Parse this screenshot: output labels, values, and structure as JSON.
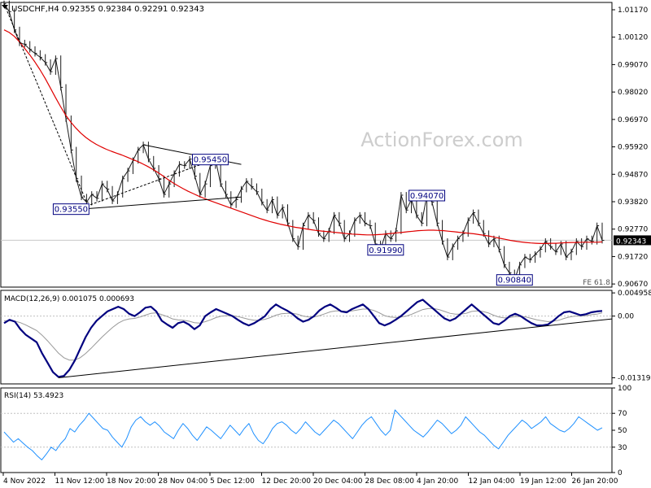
{
  "header": {
    "symbol": "USDCHF,H4",
    "ohlc": "0.92355 0.92384 0.92291 0.92343",
    "collapse_icon": "triangle-down-icon"
  },
  "watermark": "ActionForex.com",
  "colors": {
    "price_line": "#1a1a1a",
    "ma_line": "#e00000",
    "macd_line": "#00007f",
    "signal_line": "#999999",
    "rsi_line": "#1e90ff",
    "trendline": "#000000",
    "label_border": "#00007f",
    "label_text": "#00007f",
    "current_price_bg": "#000000",
    "current_price_text": "#ffffff",
    "watermark": "#cccccc",
    "grid": "#c0c0c0"
  },
  "chart_data": [
    {
      "type": "line",
      "panel": "price",
      "y_ticks": [
        "1.01170",
        "1.00120",
        "0.99070",
        "0.98020",
        "0.96970",
        "0.95920",
        "0.94870",
        "0.93820",
        "0.92770",
        "0.91720",
        "0.90670"
      ],
      "ylim": [
        0.9055,
        1.0145
      ],
      "x_ticks": [
        "4 Nov 2022",
        "11 Nov 12:00",
        "18 Nov 20:00",
        "28 Nov 04:00",
        "5 Dec 12:00",
        "12 Dec 20:00",
        "20 Dec 04:00",
        "28 Dec 08:00",
        "4 Jan 20:00",
        "12 Jan 04:00",
        "19 Jan 12:00",
        "26 Jan 20:00"
      ],
      "current_price": "0.92343",
      "annotations": [
        "0.93550",
        "0.95450",
        "0.94070",
        "0.91990",
        "0.90840",
        "FE 61.8"
      ],
      "series": [
        {
          "values": [
            1.014,
            1.011,
            1.004,
            0.999,
            0.9985,
            0.9965,
            0.995,
            0.9935,
            0.9915,
            0.988,
            0.993,
            0.982,
            0.97,
            0.958,
            0.947,
            0.94,
            0.938,
            0.941,
            0.9395,
            0.945,
            0.943,
            0.9385,
            0.941,
            0.947,
            0.95,
            0.954,
            0.958,
            0.96,
            0.9545,
            0.951,
            0.947,
            0.941,
            0.945,
            0.949,
            0.9525,
            0.952,
            0.9545,
            0.948,
            0.941,
            0.945,
            0.952,
            0.9545,
            0.945,
            0.941,
            0.937,
            0.939,
            0.943,
            0.946,
            0.944,
            0.942,
            0.938,
            0.935,
            0.939,
            0.933,
            0.936,
            0.93,
            0.924,
            0.921,
            0.929,
            0.933,
            0.931,
            0.926,
            0.924,
            0.927,
            0.933,
            0.93,
            0.924,
            0.926,
            0.931,
            0.933,
            0.93,
            0.929,
            0.922,
            0.9199,
            0.926,
            0.924,
            0.927,
            0.9407,
            0.935,
            0.939,
            0.933,
            0.93,
            0.9407,
            0.938,
            0.93,
            0.923,
            0.917,
            0.921,
            0.924,
            0.926,
            0.931,
            0.934,
            0.93,
            0.926,
            0.922,
            0.924,
            0.92,
            0.914,
            0.911,
            0.9084,
            0.914,
            0.917,
            0.916,
            0.918,
            0.92,
            0.923,
            0.921,
            0.919,
            0.922,
            0.917,
            0.919,
            0.923,
            0.921,
            0.924,
            0.923,
            0.929,
            0.9234
          ]
        },
        {
          "values": [
            1.004,
            1.003,
            1.0015,
            0.9995,
            0.997,
            0.9945,
            0.9918,
            0.9888,
            0.9855,
            0.982,
            0.9783,
            0.9748,
            0.9715,
            0.9688,
            0.9665,
            0.9645,
            0.9628,
            0.9614,
            0.9602,
            0.9592,
            0.9583,
            0.9575,
            0.9568,
            0.9561,
            0.9553,
            0.9545,
            0.9537,
            0.9528,
            0.9518,
            0.9507,
            0.9495,
            0.9482,
            0.9468,
            0.9455,
            0.9443,
            0.9432,
            0.9422,
            0.9413,
            0.9404,
            0.9396,
            0.9388,
            0.9381,
            0.9374,
            0.9367,
            0.936,
            0.9353,
            0.9346,
            0.9339,
            0.9332,
            0.9325,
            0.9318,
            0.9312,
            0.9306,
            0.9301,
            0.9296,
            0.9292,
            0.9288,
            0.9284,
            0.9281,
            0.9278,
            0.9275,
            0.9272,
            0.927,
            0.9268,
            0.9266,
            0.9264,
            0.9262,
            0.926,
            0.9258,
            0.9257,
            0.9256,
            0.9255,
            0.9255,
            0.9256,
            0.9257,
            0.9259,
            0.9261,
            0.9263,
            0.9265,
            0.9267,
            0.9269,
            0.9271,
            0.9272,
            0.9273,
            0.9273,
            0.9272,
            0.9271,
            0.9269,
            0.9267,
            0.9265,
            0.9263,
            0.9261,
            0.9259,
            0.9256,
            0.9253,
            0.925,
            0.9246,
            0.9242,
            0.9238,
            0.9234,
            0.9231,
            0.9228,
            0.9226,
            0.9224,
            0.9223,
            0.9222,
            0.9222,
            0.9223,
            0.9223,
            0.9224,
            0.9225,
            0.9226,
            0.9226,
            0.9227,
            0.9227,
            0.9227,
            0.9227,
            0.9228
          ]
        }
      ]
    },
    {
      "type": "line",
      "panel": "macd",
      "title": "MACD(12,26,9) 0.001075 0.000693",
      "y_ticks": [
        "0.004958",
        "0.00",
        "-0.013192"
      ],
      "ylim": [
        -0.0145,
        0.0055
      ],
      "series": [
        {
          "values": [
            -0.0015,
            -0.0008,
            -0.0012,
            -0.0028,
            -0.004,
            -0.0048,
            -0.0056,
            -0.008,
            -0.01,
            -0.012,
            -0.013,
            -0.0128,
            -0.0115,
            -0.0095,
            -0.007,
            -0.0045,
            -0.0025,
            -0.001,
            0.0,
            0.001,
            0.0015,
            0.002,
            0.0015,
            0.0005,
            0.0,
            0.0008,
            0.0018,
            0.002,
            0.001,
            -0.001,
            -0.0018,
            -0.0025,
            -0.0015,
            -0.0012,
            -0.0018,
            -0.0028,
            -0.002,
            0.0,
            0.0008,
            0.0015,
            0.001,
            0.0005,
            0.0,
            -0.0008,
            -0.0015,
            -0.002,
            -0.0015,
            -0.0008,
            0.0,
            0.0015,
            0.0025,
            0.0018,
            0.0012,
            0.0005,
            -0.0005,
            -0.0012,
            -0.0008,
            0.0,
            0.0012,
            0.002,
            0.0025,
            0.0018,
            0.001,
            0.0008,
            0.0015,
            0.002,
            0.0025,
            0.0015,
            0.0,
            -0.0015,
            -0.002,
            -0.0015,
            -0.0008,
            0.0,
            0.001,
            0.002,
            0.003,
            0.0035,
            0.0025,
            0.0015,
            0.0005,
            -0.0005,
            -0.001,
            -0.0005,
            0.0005,
            0.0015,
            0.0025,
            0.0015,
            0.0005,
            -0.0005,
            -0.0015,
            -0.0018,
            -0.001,
            0.0,
            0.0005,
            0.0,
            -0.0008,
            -0.0015,
            -0.002,
            -0.002,
            -0.0018,
            -0.001,
            0.0,
            0.0008,
            0.001,
            0.0006,
            0.0002,
            0.0004,
            0.0008,
            0.001,
            0.0011
          ]
        },
        {
          "values": [
            -0.001,
            -0.001,
            -0.0011,
            -0.0014,
            -0.0019,
            -0.0025,
            -0.0031,
            -0.0041,
            -0.0053,
            -0.0066,
            -0.0079,
            -0.0089,
            -0.0094,
            -0.0094,
            -0.0089,
            -0.008,
            -0.0069,
            -0.0057,
            -0.0045,
            -0.0034,
            -0.0024,
            -0.0015,
            -0.0009,
            -0.0006,
            -0.0005,
            -0.0002,
            0.0002,
            0.0006,
            0.0007,
            0.0003,
            -0.0001,
            -0.0006,
            -0.0008,
            -0.0009,
            -0.0011,
            -0.0014,
            -0.0015,
            -0.0012,
            -0.0008,
            -0.0003,
            0.0,
            0.0001,
            0.0001,
            -0.0001,
            -0.0004,
            -0.0007,
            -0.0009,
            -0.0009,
            -0.0007,
            -0.0003,
            0.0002,
            0.0005,
            0.0006,
            0.0006,
            0.0004,
            0.0,
            -0.0002,
            -0.0002,
            0.0001,
            0.0005,
            0.0009,
            0.0011,
            0.0011,
            0.001,
            0.0011,
            0.0013,
            0.0015,
            0.0015,
            0.0012,
            0.0007,
            0.0001,
            -0.0002,
            -0.0003,
            -0.0002,
            0.0,
            0.0004,
            0.0009,
            0.0014,
            0.0016,
            0.0016,
            0.0014,
            0.001,
            0.0006,
            0.0004,
            0.0004,
            0.0006,
            0.001,
            0.0011,
            0.001,
            0.0007,
            0.0002,
            -0.0002,
            -0.0004,
            -0.0003,
            -0.0001,
            -0.0001,
            -0.0002,
            -0.0005,
            -0.0008,
            -0.001,
            -0.0012,
            -0.0011,
            -0.0009,
            -0.0005,
            -0.0002,
            0.0,
            0.0,
            0.0001,
            0.0003,
            0.0004,
            0.0007
          ]
        }
      ]
    },
    {
      "type": "line",
      "panel": "rsi",
      "title": "RSI(14) 53.4923",
      "y_ticks": [
        "100",
        "70",
        "50",
        "30",
        "0"
      ],
      "ylim": [
        0,
        100
      ],
      "series": [
        {
          "values": [
            48,
            42,
            36,
            40,
            35,
            30,
            26,
            20,
            15,
            22,
            30,
            26,
            34,
            40,
            52,
            48,
            56,
            62,
            70,
            64,
            58,
            52,
            50,
            42,
            36,
            30,
            40,
            54,
            62,
            66,
            60,
            56,
            60,
            55,
            48,
            44,
            40,
            50,
            58,
            52,
            44,
            38,
            46,
            54,
            50,
            45,
            40,
            48,
            56,
            50,
            44,
            52,
            58,
            46,
            38,
            34,
            42,
            52,
            58,
            60,
            56,
            50,
            46,
            52,
            60,
            54,
            48,
            44,
            50,
            56,
            62,
            58,
            52,
            46,
            40,
            48,
            56,
            62,
            66,
            58,
            50,
            44,
            50,
            74,
            68,
            62,
            56,
            50,
            46,
            42,
            48,
            55,
            62,
            58,
            52,
            46,
            50,
            56,
            66,
            60,
            54,
            48,
            44,
            38,
            32,
            28,
            36,
            44,
            50,
            56,
            62,
            58,
            52,
            56,
            60,
            66,
            58,
            54,
            50,
            48,
            52,
            58,
            66,
            62,
            58,
            54,
            50,
            53
          ]
        }
      ]
    }
  ]
}
